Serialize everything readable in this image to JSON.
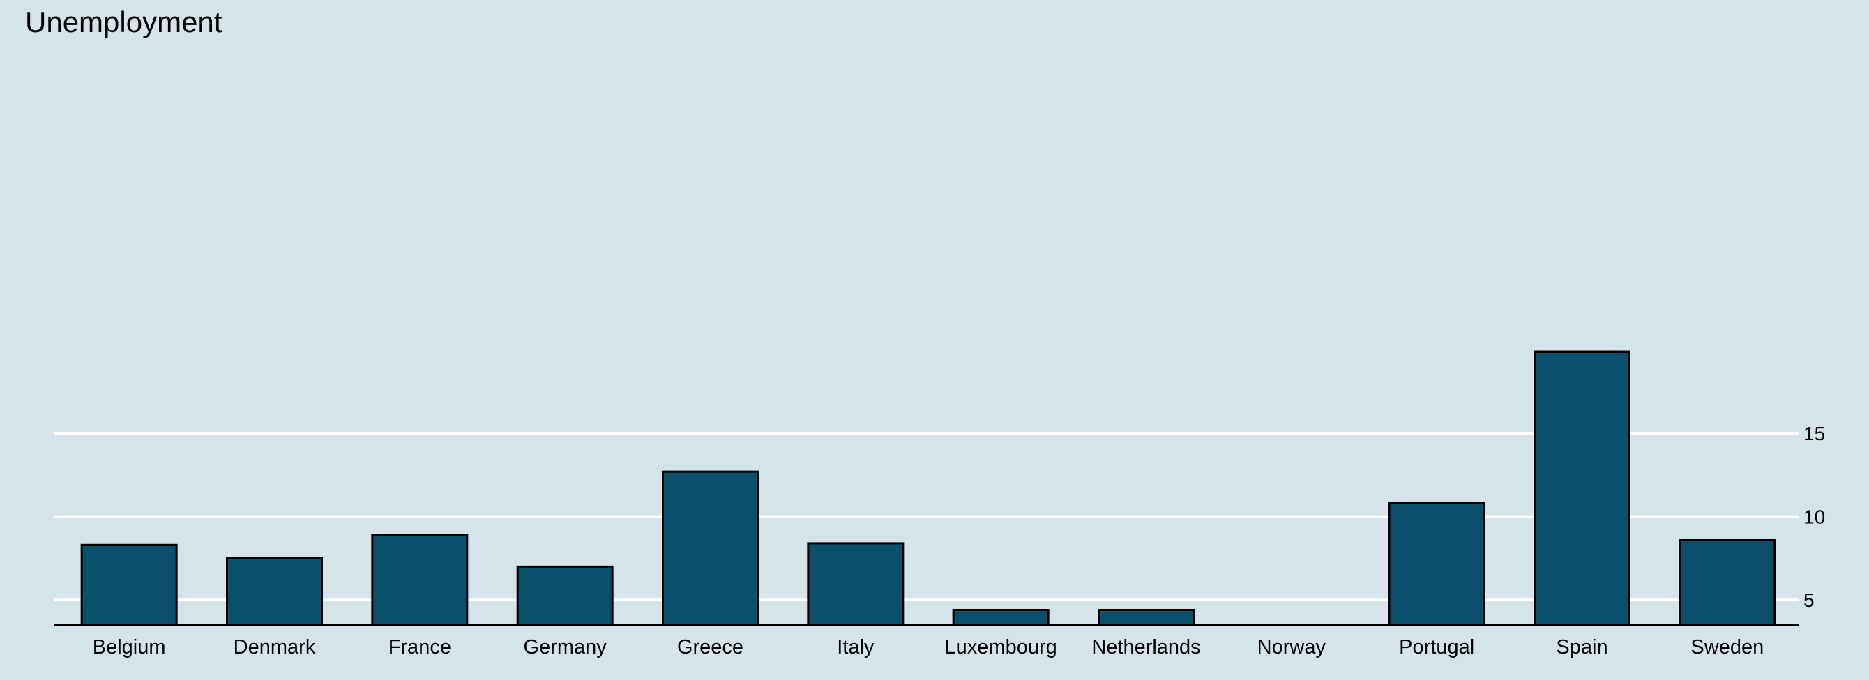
{
  "chart_data": {
    "type": "bar",
    "title": "Unemployment",
    "xlabel": "",
    "ylabel": "",
    "categories": [
      "Belgium",
      "Denmark",
      "France",
      "Germany",
      "Greece",
      "Italy",
      "Luxembourg",
      "Netherlands",
      "Norway",
      "Portugal",
      "Spain",
      "Sweden"
    ],
    "values": [
      8.3,
      7.5,
      8.9,
      7.0,
      12.7,
      8.4,
      4.4,
      4.4,
      3.5,
      10.8,
      19.9,
      8.6
    ],
    "ylim": [
      3.5,
      21.5
    ],
    "yticks": [
      5,
      10,
      15
    ],
    "ytick_labels": [
      "5",
      "10",
      "15"
    ],
    "y_axis_position": "right",
    "grid": "horizontal",
    "legend": "none",
    "colors": {
      "background": "#d5e4eb",
      "bar_fill": "#0b4f6c",
      "bar_stroke": "#000000",
      "gridline": "#ffffff",
      "baseline": "#000000"
    }
  }
}
